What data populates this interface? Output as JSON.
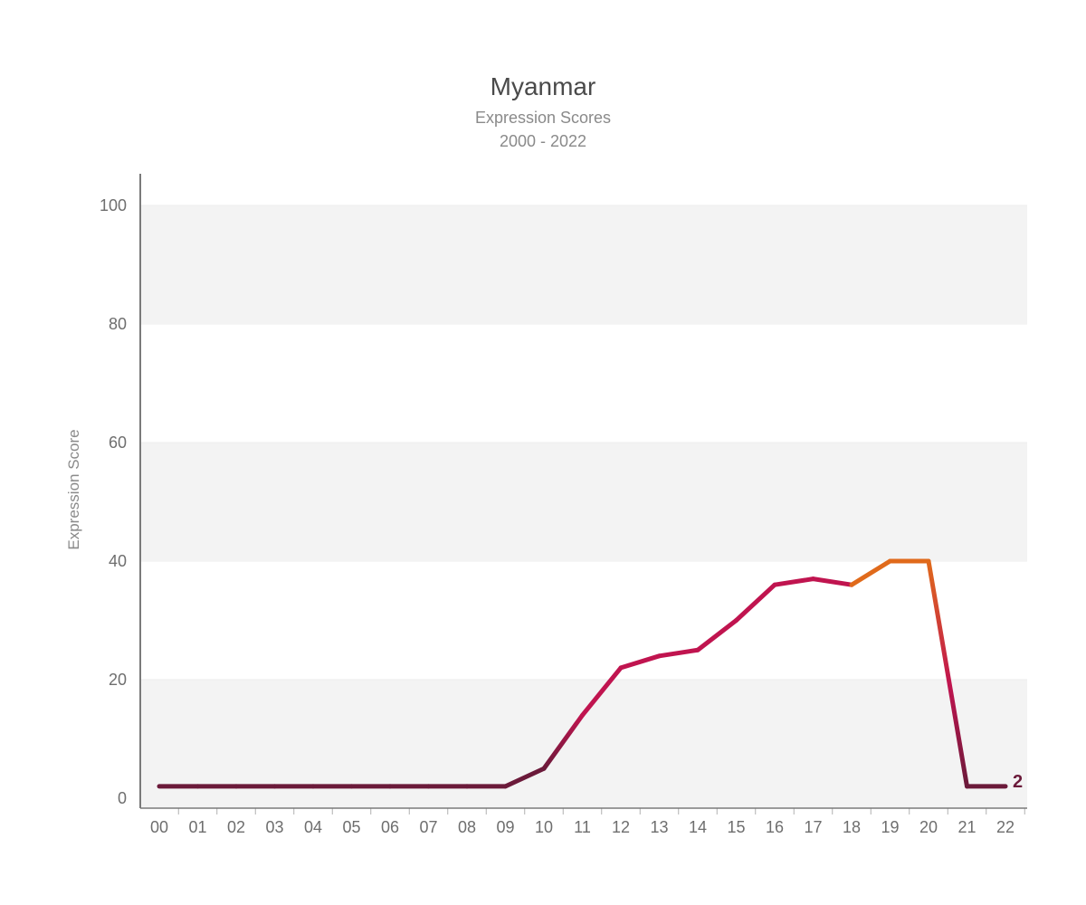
{
  "chart_data": {
    "type": "line",
    "title": "Myanmar",
    "subtitle": "Expression Scores",
    "subtitle2": "2000 - 2022",
    "xlabel": "",
    "ylabel": "Expression Score",
    "categories": [
      "00",
      "01",
      "02",
      "03",
      "04",
      "05",
      "06",
      "07",
      "08",
      "09",
      "10",
      "11",
      "12",
      "13",
      "14",
      "15",
      "16",
      "17",
      "18",
      "19",
      "20",
      "21",
      "22"
    ],
    "series": [
      {
        "values": [
          2,
          2,
          2,
          2,
          2,
          2,
          2,
          2,
          2,
          2,
          5,
          14,
          22,
          24,
          25,
          30,
          36,
          37,
          36,
          40,
          40,
          2,
          2
        ]
      }
    ],
    "ylim": [
      0,
      100
    ],
    "yticks": [
      0,
      20,
      40,
      60,
      80,
      100
    ],
    "grid": "alternating horizontal bands",
    "end_label": "2",
    "colors": {
      "low": "#6b1a3a",
      "mid": "#c0144f",
      "high": "#e06a1b",
      "axis": "#7a7a7a",
      "band": "#f3f3f3"
    }
  }
}
